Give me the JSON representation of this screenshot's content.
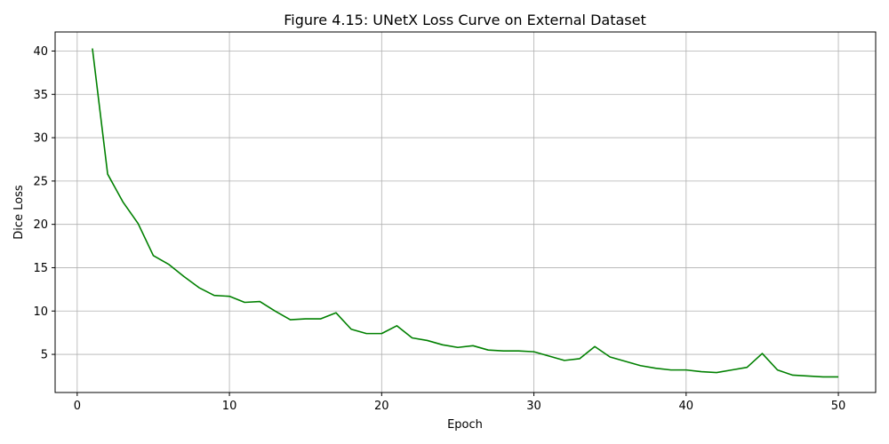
{
  "chart_data": {
    "type": "line",
    "title": "Figure 4.15: UNetX Loss Curve on External Dataset",
    "xlabel": "Epoch",
    "ylabel": "Dice Loss",
    "xlim": [
      -1.45,
      52.45
    ],
    "ylim": [
      0.6,
      42.2
    ],
    "xticks": [
      0,
      10,
      20,
      30,
      40,
      50
    ],
    "yticks": [
      5,
      10,
      15,
      20,
      25,
      30,
      35,
      40
    ],
    "grid": true,
    "series": [
      {
        "color": "#008000",
        "x": [
          1,
          2,
          3,
          4,
          5,
          6,
          7,
          8,
          9,
          10,
          11,
          12,
          13,
          14,
          15,
          16,
          17,
          18,
          19,
          20,
          21,
          22,
          23,
          24,
          25,
          26,
          27,
          28,
          29,
          30,
          31,
          32,
          33,
          34,
          35,
          36,
          37,
          38,
          39,
          40,
          41,
          42,
          43,
          44,
          45,
          46,
          47,
          48,
          49,
          50
        ],
        "y": [
          40.3,
          25.8,
          22.6,
          20.1,
          16.4,
          15.4,
          14.0,
          12.7,
          11.8,
          11.7,
          11.0,
          11.1,
          10.0,
          9.0,
          9.1,
          9.1,
          9.8,
          7.9,
          7.4,
          7.4,
          8.3,
          6.9,
          6.6,
          6.1,
          5.8,
          6.0,
          5.5,
          5.4,
          5.4,
          5.3,
          4.8,
          4.3,
          4.5,
          5.9,
          4.7,
          4.2,
          3.7,
          3.4,
          3.2,
          3.2,
          3.0,
          2.9,
          3.2,
          3.5,
          5.1,
          3.2,
          2.6,
          2.5,
          2.4,
          2.4
        ]
      }
    ]
  }
}
